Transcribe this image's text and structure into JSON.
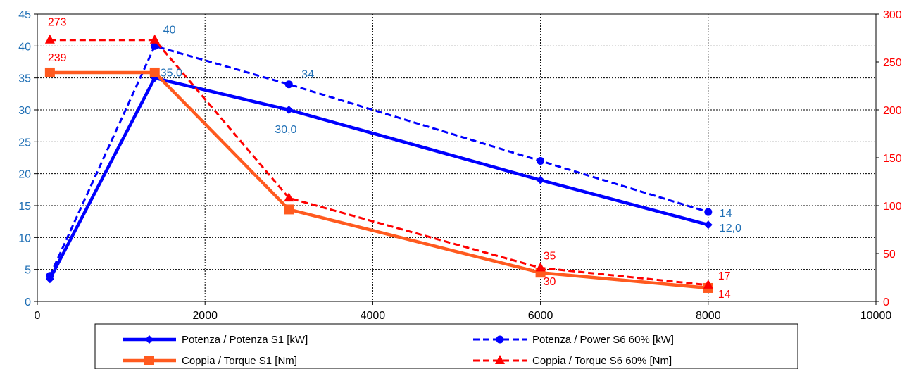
{
  "chart_data": {
    "type": "line",
    "x_axis": {
      "min": 0,
      "max": 10000,
      "ticks": [
        "0",
        "2000",
        "4000",
        "6000",
        "8000",
        "10000"
      ]
    },
    "y_left": {
      "min": 0,
      "max": 45,
      "ticks": [
        "0",
        "5",
        "10",
        "15",
        "20",
        "25",
        "30",
        "35",
        "40",
        "45"
      ]
    },
    "y_right": {
      "min": 0,
      "max": 300,
      "ticks": [
        "0",
        "50",
        "100",
        "150",
        "200",
        "250",
        "300"
      ]
    },
    "grid": true,
    "legend_position": "bottom",
    "series": [
      {
        "name": "Potenza / Potenza S1 [kW]",
        "axis": "left",
        "color": "#0000ff",
        "dash": false,
        "marker": "diamond",
        "x": [
          150,
          1400,
          3000,
          6000,
          8000
        ],
        "y": [
          3.5,
          35.0,
          30.0,
          19.0,
          12.0
        ],
        "labels": [
          {
            "i": 1,
            "text": "35,0"
          },
          {
            "i": 2,
            "text": "30,0"
          },
          {
            "i": 4,
            "text": "12,0"
          }
        ]
      },
      {
        "name": "Potenza / Power S6 60% [kW]",
        "axis": "left",
        "color": "#0000ff",
        "dash": true,
        "marker": "circle",
        "x": [
          150,
          1400,
          3000,
          6000,
          8000
        ],
        "y": [
          4,
          40,
          34,
          22,
          14
        ],
        "labels": [
          {
            "i": 1,
            "text": "40"
          },
          {
            "i": 2,
            "text": "34"
          },
          {
            "i": 4,
            "text": "14"
          }
        ]
      },
      {
        "name": "Coppia / Torque S1 [Nm]",
        "axis": "right",
        "color": "#ff5a1f",
        "dash": false,
        "marker": "square",
        "x": [
          150,
          1400,
          3000,
          6000,
          8000
        ],
        "y": [
          239,
          239,
          96,
          30,
          14
        ],
        "labels": [
          {
            "i": 0,
            "text": "239"
          },
          {
            "i": 3,
            "text": "30"
          },
          {
            "i": 4,
            "text": "14"
          }
        ]
      },
      {
        "name": "Coppia / Torque S6 60% [Nm]",
        "axis": "right",
        "color": "#ff0000",
        "dash": true,
        "marker": "triangle",
        "x": [
          150,
          1400,
          3000,
          6000,
          8000
        ],
        "y": [
          273,
          273,
          108,
          35,
          17
        ],
        "labels": [
          {
            "i": 0,
            "text": "273"
          },
          {
            "i": 3,
            "text": "35"
          },
          {
            "i": 4,
            "text": "17"
          }
        ]
      }
    ]
  }
}
